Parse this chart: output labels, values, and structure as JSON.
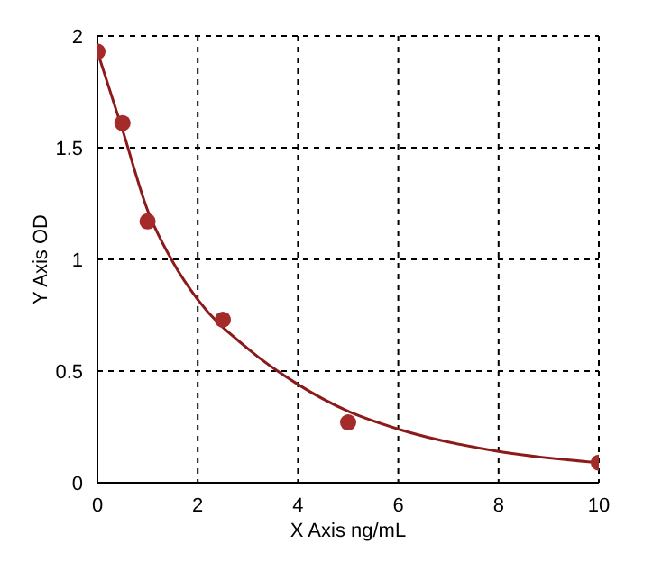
{
  "chart_data": {
    "type": "scatter",
    "xlabel": "X Axis ng/mL",
    "ylabel": "Y Axis OD",
    "xlim": [
      0,
      10
    ],
    "xticks": [
      0,
      2,
      4,
      6,
      8,
      10
    ],
    "ylim": [
      0,
      2
    ],
    "yticks": [
      0,
      0.5,
      1,
      1.5,
      2
    ],
    "grid": true,
    "marker": "circle",
    "series": [
      {
        "type": "line",
        "marker": "none",
        "color": "#8b1a1a",
        "x": [
          0,
          0.5,
          1,
          1.5,
          2,
          3,
          4,
          5,
          6,
          8,
          10
        ],
        "values": [
          1.93,
          1.58,
          1.22,
          0.99,
          0.82,
          0.6,
          0.44,
          0.32,
          0.24,
          0.14,
          0.09
        ]
      },
      {
        "color": "#a52a2a",
        "x": [
          0,
          0.5,
          1,
          2.5,
          5,
          10
        ],
        "values": [
          1.93,
          1.61,
          1.17,
          0.73,
          0.27,
          0.09
        ]
      }
    ]
  }
}
